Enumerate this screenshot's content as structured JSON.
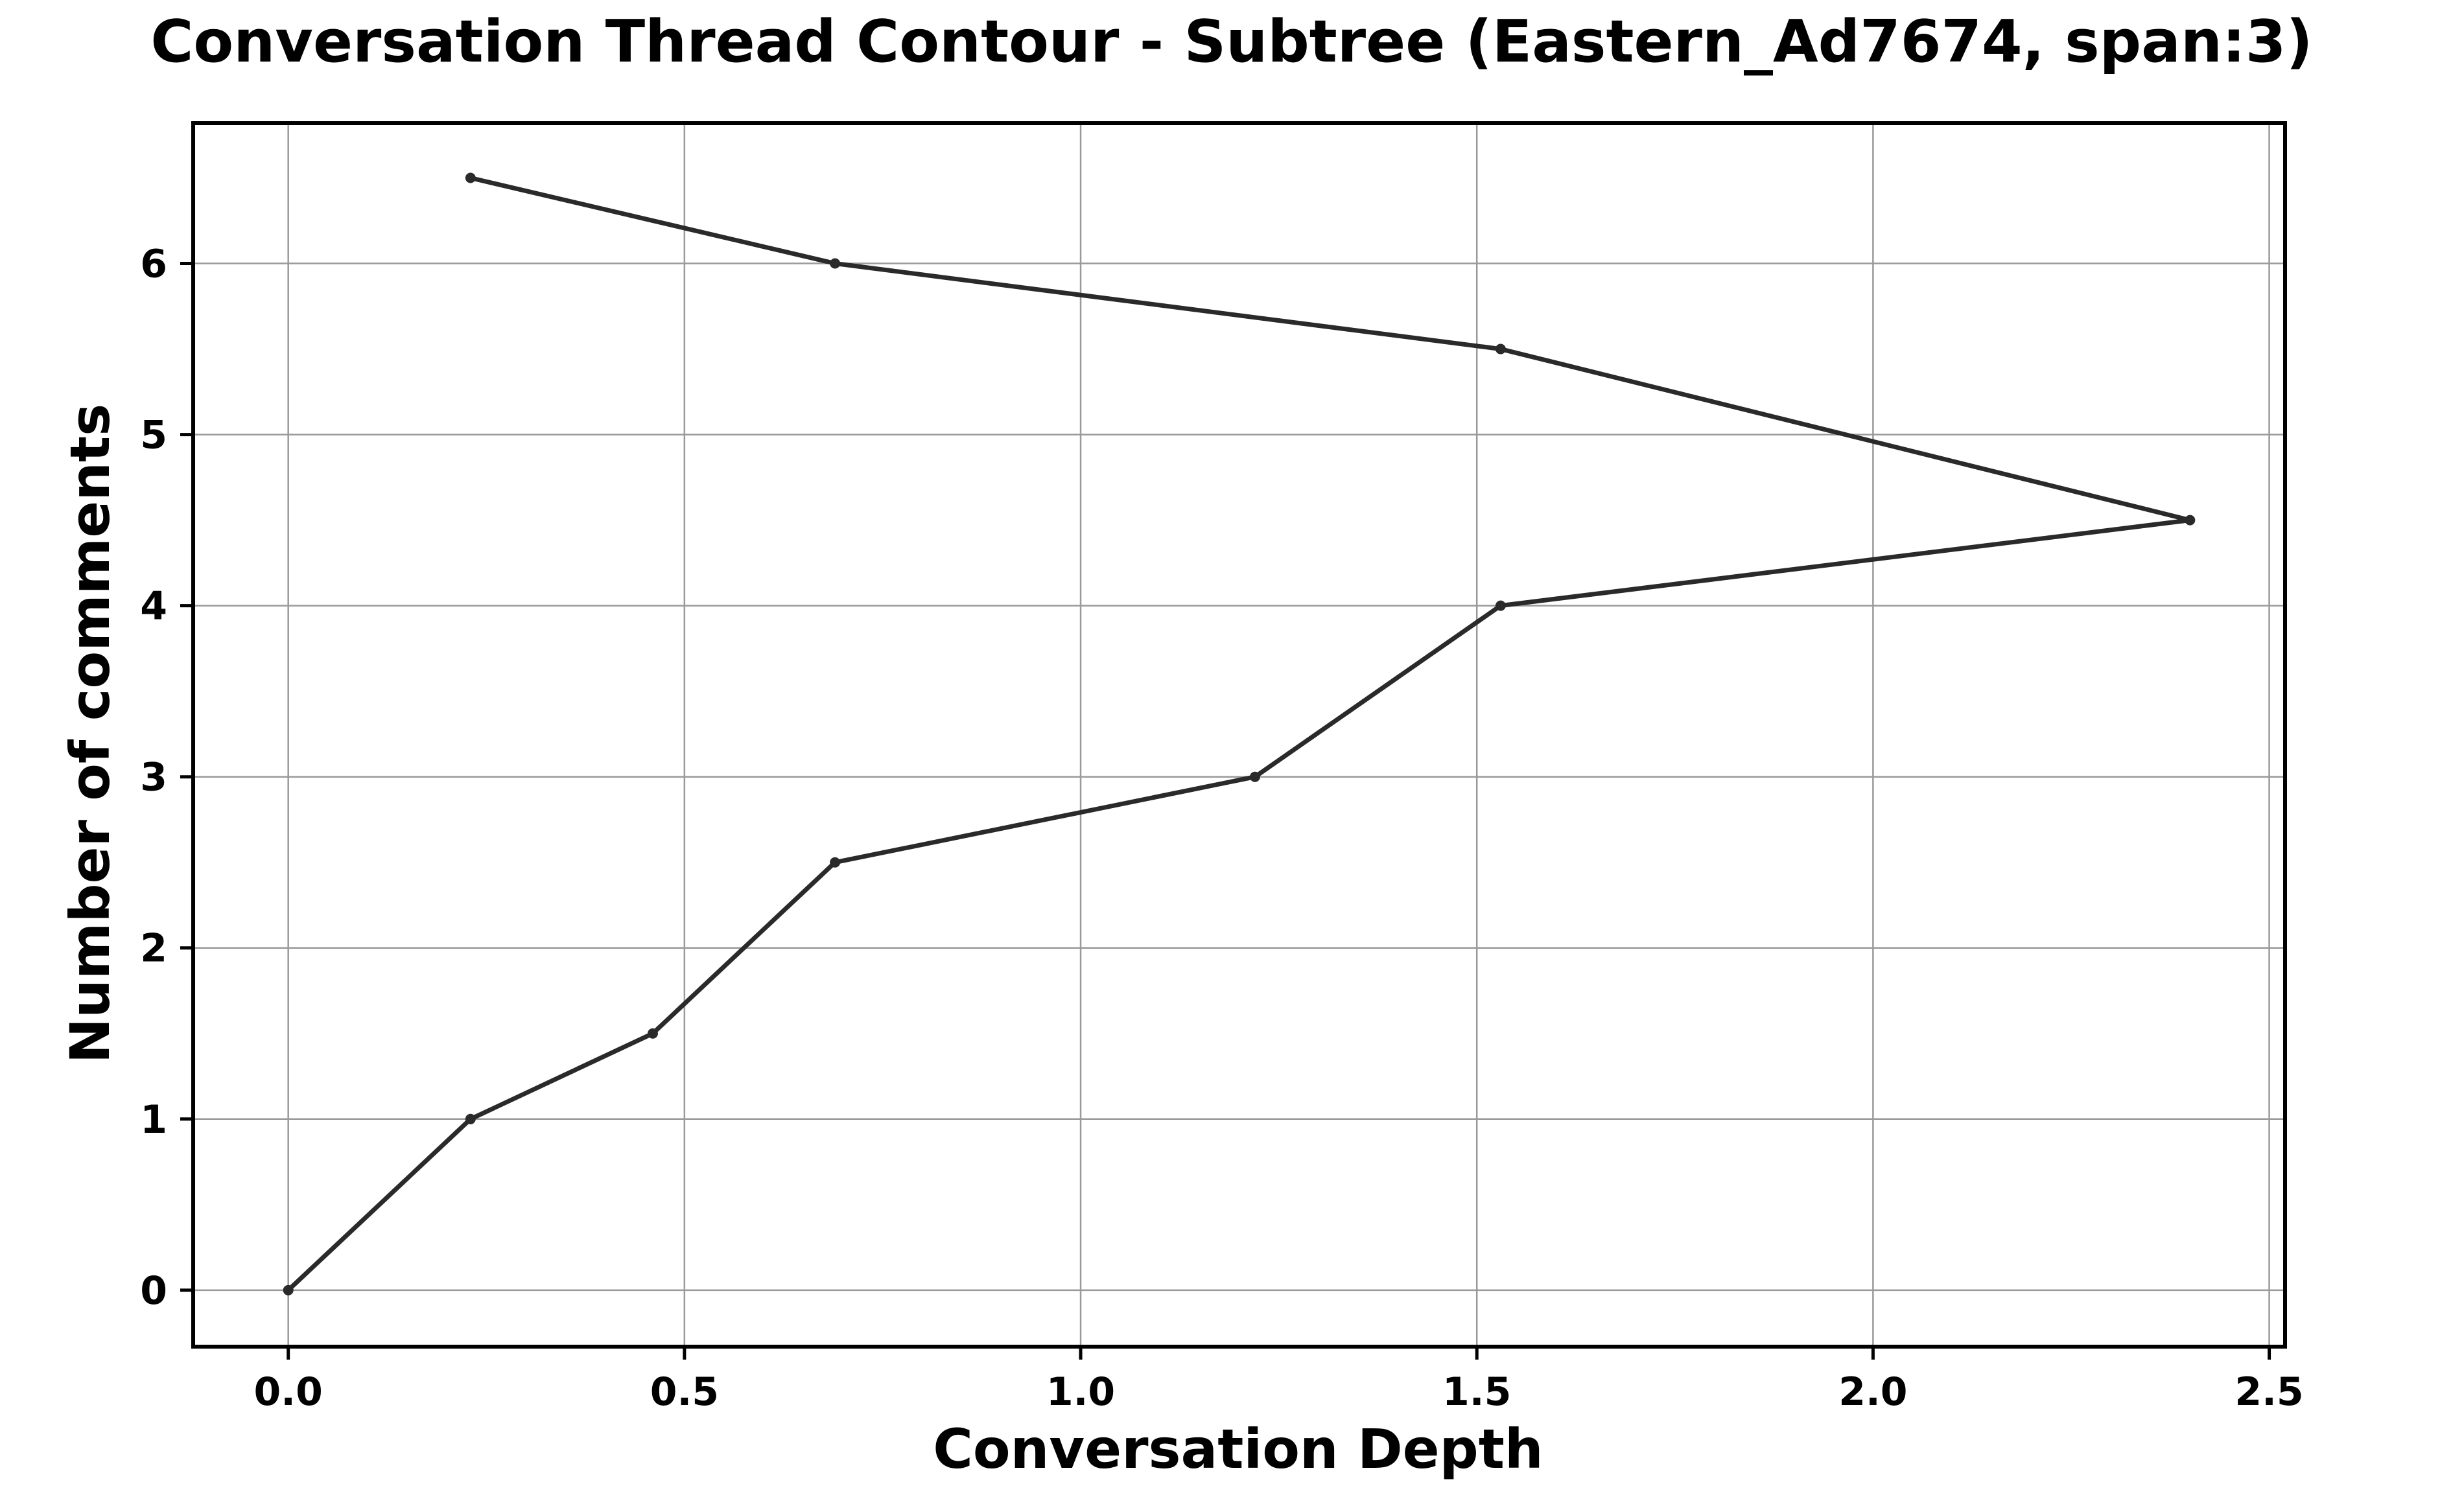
{
  "chart_data": {
    "type": "line",
    "title": "Conversation Thread Contour  - Subtree (Eastern_Ad7674, span:3)",
    "xlabel": "Conversation Depth",
    "ylabel": "Number of comments",
    "xlim": [
      -0.12,
      2.52
    ],
    "ylim": [
      -0.33,
      6.82
    ],
    "x_ticks": [
      "0.0",
      "0.5",
      "1.0",
      "1.5",
      "2.0",
      "2.5"
    ],
    "x_tick_values": [
      0.0,
      0.5,
      1.0,
      1.5,
      2.0,
      2.5
    ],
    "y_ticks": [
      "0",
      "1",
      "2",
      "3",
      "4",
      "5",
      "6"
    ],
    "y_tick_values": [
      0,
      1,
      2,
      3,
      4,
      5,
      6
    ],
    "grid": true,
    "line_color": "#2a2a2a",
    "grid_color": "#9a9a9a",
    "series": [
      {
        "x": [
          0.0,
          0.23,
          0.46,
          0.69,
          1.22,
          1.53,
          2.4,
          1.53,
          0.69,
          0.23
        ],
        "y": [
          0.0,
          1.0,
          1.5,
          2.5,
          3.0,
          4.0,
          4.5,
          5.5,
          6.0,
          6.5
        ]
      }
    ]
  }
}
